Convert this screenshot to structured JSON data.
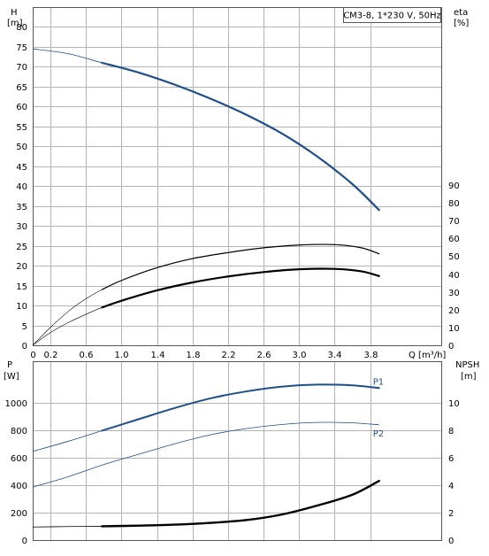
{
  "title_box": "CM3-8, 1*230 V, 50Hz",
  "chart_data": [
    {
      "id": "top",
      "type": "line",
      "left_axis": {
        "label_line1": "H",
        "label_line2": "[m]",
        "ticks": [
          0,
          5,
          10,
          15,
          20,
          25,
          30,
          35,
          40,
          45,
          50,
          55,
          60,
          65,
          70,
          75,
          80
        ],
        "range": [
          0,
          85
        ]
      },
      "right_axis": {
        "label_line1": "eta",
        "label_line2": "[%]",
        "ticks": [
          0,
          10,
          20,
          30,
          40,
          50,
          60,
          70,
          80,
          90
        ],
        "range": [
          0,
          190
        ]
      },
      "x_axis": {
        "label": "Q [m³/h]",
        "ticks": [
          0,
          0.2,
          0.6,
          1.0,
          1.4,
          1.8,
          2.2,
          2.6,
          3.0,
          3.4,
          3.8
        ],
        "tick_labels": [
          "0",
          "0.2",
          "0.6",
          "1.0",
          "1.4",
          "1.8",
          "2.2",
          "2.6",
          "3.0",
          "3.4",
          "3.8"
        ],
        "range": [
          0,
          4.6
        ]
      },
      "grid": true,
      "series": [
        {
          "axis": "left",
          "color": "#1f4e8c",
          "width_thin": 0.8,
          "width_thick": 2.2,
          "thick_from": 0.78,
          "points": [
            [
              0,
              74.5
            ],
            [
              0.4,
              73.3
            ],
            [
              0.78,
              71.0
            ],
            [
              1.2,
              68.5
            ],
            [
              1.6,
              65.5
            ],
            [
              2.0,
              62.0
            ],
            [
              2.4,
              58.0
            ],
            [
              2.8,
              53.3
            ],
            [
              3.2,
              47.5
            ],
            [
              3.6,
              40.5
            ],
            [
              3.9,
              34.0
            ]
          ]
        },
        {
          "axis": "left",
          "color": "#000000",
          "width_thin": 0.6,
          "width_thick": 1.2,
          "thick_from": 0.78,
          "points": [
            [
              0,
              0
            ],
            [
              0.2,
              4.5
            ],
            [
              0.4,
              8.5
            ],
            [
              0.6,
              11.7
            ],
            [
              0.78,
              14.0
            ],
            [
              1.0,
              16.3
            ],
            [
              1.4,
              19.5
            ],
            [
              1.8,
              21.8
            ],
            [
              2.2,
              23.3
            ],
            [
              2.6,
              24.5
            ],
            [
              3.0,
              25.2
            ],
            [
              3.4,
              25.3
            ],
            [
              3.7,
              24.5
            ],
            [
              3.9,
              23.0
            ]
          ]
        },
        {
          "axis": "left",
          "color": "#000000",
          "width_thin": 0.6,
          "width_thick": 2.2,
          "thick_from": 0.78,
          "points": [
            [
              0,
              0
            ],
            [
              0.2,
              3.2
            ],
            [
              0.4,
              5.7
            ],
            [
              0.6,
              7.8
            ],
            [
              0.78,
              9.5
            ],
            [
              1.0,
              11.2
            ],
            [
              1.4,
              13.8
            ],
            [
              1.8,
              15.8
            ],
            [
              2.2,
              17.3
            ],
            [
              2.6,
              18.4
            ],
            [
              3.0,
              19.1
            ],
            [
              3.4,
              19.2
            ],
            [
              3.7,
              18.6
            ],
            [
              3.9,
              17.4
            ]
          ]
        }
      ]
    },
    {
      "id": "bottom",
      "type": "line",
      "left_axis": {
        "label_line1": "P",
        "label_line2": "[W]",
        "ticks": [
          0,
          200,
          400,
          600,
          800,
          1000
        ],
        "range": [
          0,
          1300
        ]
      },
      "right_axis": {
        "label_line1": "NPSH",
        "label_line2": "[m]",
        "ticks": [
          0,
          2,
          4,
          6,
          8,
          10
        ],
        "range": [
          0,
          13
        ]
      },
      "x_range": [
        0,
        4.6
      ],
      "grid": true,
      "series": [
        {
          "name": "P1",
          "axis": "left",
          "color": "#1f4e8c",
          "width_thin": 0.8,
          "width_thick": 2.0,
          "thick_from": 0.78,
          "points": [
            [
              0,
              645
            ],
            [
              0.4,
              718
            ],
            [
              0.78,
              795
            ],
            [
              1.2,
              880
            ],
            [
              1.6,
              960
            ],
            [
              2.0,
              1030
            ],
            [
              2.4,
              1080
            ],
            [
              2.8,
              1115
            ],
            [
              3.2,
              1130
            ],
            [
              3.6,
              1125
            ],
            [
              3.9,
              1105
            ]
          ]
        },
        {
          "name": "P2",
          "axis": "left",
          "color": "#1f4e8c",
          "width_thin": 0.8,
          "width_thick": 0.8,
          "thick_from": 0.78,
          "points": [
            [
              0,
              385
            ],
            [
              0.4,
              460
            ],
            [
              0.78,
              545
            ],
            [
              1.2,
              625
            ],
            [
              1.6,
              700
            ],
            [
              2.0,
              765
            ],
            [
              2.4,
              810
            ],
            [
              2.8,
              840
            ],
            [
              3.2,
              855
            ],
            [
              3.6,
              852
            ],
            [
              3.9,
              838
            ]
          ]
        },
        {
          "axis": "right",
          "color": "#000000",
          "width_thin": 0.8,
          "width_thick": 2.4,
          "thick_from": 0.78,
          "points": [
            [
              0,
              0.95
            ],
            [
              0.4,
              0.98
            ],
            [
              0.78,
              1.0
            ],
            [
              1.2,
              1.05
            ],
            [
              1.6,
              1.12
            ],
            [
              2.0,
              1.25
            ],
            [
              2.4,
              1.45
            ],
            [
              2.8,
              1.85
            ],
            [
              3.2,
              2.5
            ],
            [
              3.6,
              3.3
            ],
            [
              3.9,
              4.3
            ]
          ]
        }
      ]
    }
  ]
}
